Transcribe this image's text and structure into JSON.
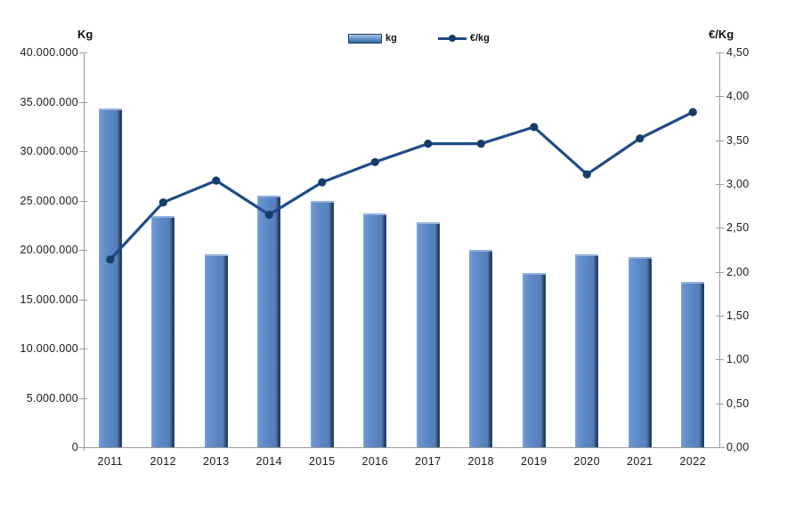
{
  "chart_data": {
    "type": "combo",
    "title": "",
    "categories": [
      "2011",
      "2012",
      "2013",
      "2014",
      "2015",
      "2016",
      "2017",
      "2018",
      "2019",
      "2020",
      "2021",
      "2022"
    ],
    "series": [
      {
        "name": "kg",
        "type": "bar",
        "y_axis": "left",
        "color": "#5b87c5",
        "values": [
          34100000,
          23200000,
          19400000,
          25300000,
          24800000,
          23500000,
          22600000,
          19800000,
          17500000,
          19400000,
          19100000,
          16600000
        ]
      },
      {
        "name": "€/kg",
        "type": "line",
        "y_axis": "right",
        "color": "#1e4d87",
        "values": [
          2.14,
          2.79,
          3.04,
          2.65,
          3.02,
          3.25,
          3.46,
          3.46,
          3.65,
          3.11,
          3.52,
          3.82
        ]
      }
    ],
    "left_axis": {
      "title": "Kg",
      "min": 0,
      "max": 40000000,
      "step": 5000000,
      "tick_labels_top_down": [
        "40.000.000",
        "35.000.000",
        "30.000.000",
        "25.000.000",
        "20.000.000",
        "15.000.000",
        "10.000.000",
        "5.000.000",
        "0"
      ]
    },
    "right_axis": {
      "title": "€/Kg",
      "min": 0,
      "max": 4.5,
      "step": 0.5,
      "tick_labels_top_down": [
        "4,50",
        "4,00",
        "3,50",
        "3,00",
        "2,50",
        "2,00",
        "1,50",
        "1,00",
        "0,50",
        "0,00"
      ]
    },
    "legend": {
      "position": "top",
      "items": [
        {
          "label": "kg",
          "swatch": "bar"
        },
        {
          "label": "€/kg",
          "swatch": "line-marker"
        }
      ]
    },
    "grid": false,
    "colors": {
      "bar_fill": "#5b87c5",
      "bar_edge_dark": "#1f3c66",
      "bar_highlight": "#93b2df",
      "line": "#1e4d87",
      "axis": "#9b9b9b",
      "text": "#1a1a1a"
    }
  }
}
